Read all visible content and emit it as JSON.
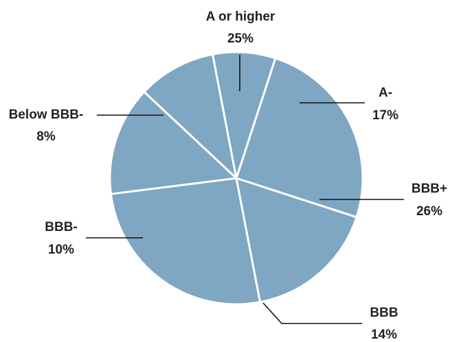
{
  "chart_data": {
    "type": "pie",
    "title": "",
    "slices": [
      {
        "label": "A or higher",
        "value_label": "25%",
        "value": 25
      },
      {
        "label": "A-",
        "value_label": "17%",
        "value": 17
      },
      {
        "label": "BBB+",
        "value_label": "26%",
        "value": 26
      },
      {
        "label": "BBB",
        "value_label": "14%",
        "value": 14
      },
      {
        "label": "BBB-",
        "value_label": "10%",
        "value": 10
      },
      {
        "label": "Below BBB-",
        "value_label": "8%",
        "value": 8
      }
    ],
    "legend": "none",
    "colors": {
      "slice": "#7fa6c3",
      "separator": "#ffffff",
      "leader": "#111111",
      "text": "#222222"
    }
  }
}
